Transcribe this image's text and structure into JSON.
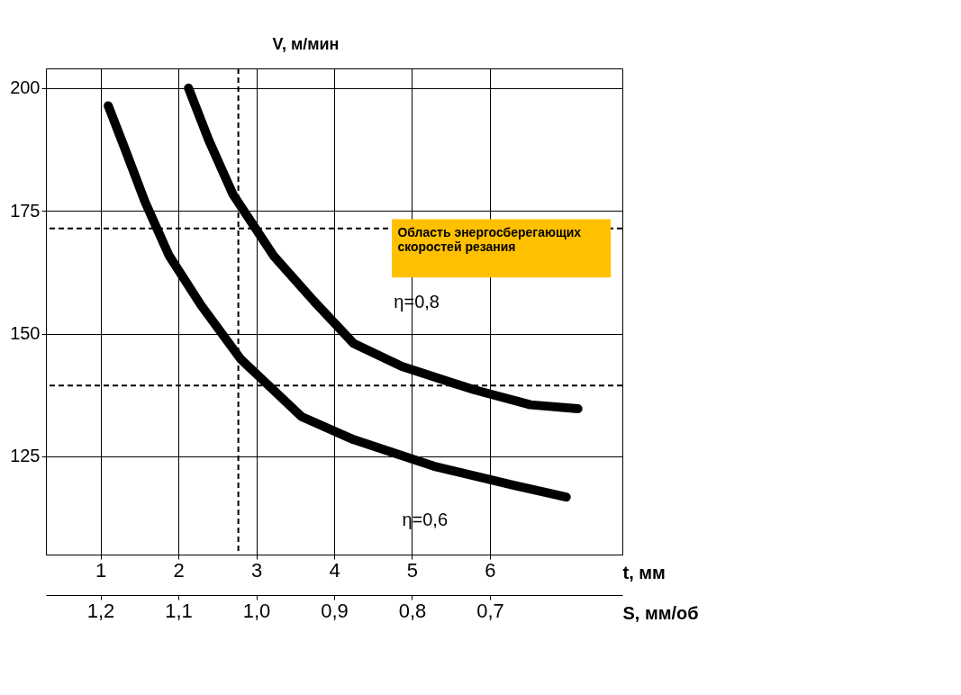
{
  "chart_data": {
    "type": "line",
    "ylabel": "V, м/мин",
    "xlabel": "t, мм",
    "x2label": "S, мм/об",
    "xlim": [
      0.3,
      7.7
    ],
    "xticks": [
      1,
      2,
      3,
      4,
      5,
      6
    ],
    "x2lim": [
      1.27,
      0.53
    ],
    "x2ticks": [
      {
        "value": 1.2,
        "label": "1,2"
      },
      {
        "value": 1.1,
        "label": "1,1"
      },
      {
        "value": 1.0,
        "label": "1,0"
      },
      {
        "value": 0.9,
        "label": "0,9"
      },
      {
        "value": 0.8,
        "label": "0,8"
      },
      {
        "value": 0.7,
        "label": "0,7"
      }
    ],
    "ylim": [
      105,
      204
    ],
    "yticks": [
      125,
      150,
      175,
      200
    ],
    "grid": true,
    "legend": false,
    "line_style": "solid",
    "marker": "none",
    "series": [
      {
        "name": "η=0,8",
        "color": "#000000",
        "x": [
          2.13,
          2.39,
          2.7,
          3.22,
          3.74,
          4.25,
          4.87,
          5.79,
          6.52,
          7.13
        ],
        "values": [
          200,
          189.4,
          178.4,
          165.9,
          156.6,
          148.0,
          143.3,
          138.6,
          135.5,
          134.7
        ]
      },
      {
        "name": "η=0,6",
        "color": "#000000",
        "x": [
          1.1,
          1.31,
          1.57,
          1.88,
          2.29,
          2.8,
          3.58,
          4.25,
          5.28,
          6.31,
          6.98
        ],
        "values": [
          196.4,
          187.8,
          176.9,
          165.9,
          155.8,
          144.8,
          133.1,
          128.4,
          123.0,
          119.1,
          116.7
        ]
      }
    ],
    "ref_lines": [
      {
        "axis": "x",
        "value": 2.77,
        "line_style": "dashed",
        "color": "#000000"
      },
      {
        "axis": "y",
        "value": 171.4,
        "line_style": "dashed",
        "color": "#000000"
      },
      {
        "axis": "y",
        "value": 139.4,
        "line_style": "dashed",
        "color": "#000000"
      }
    ],
    "annotations": [
      "Область энергосберегающих скоростей резания"
    ]
  }
}
